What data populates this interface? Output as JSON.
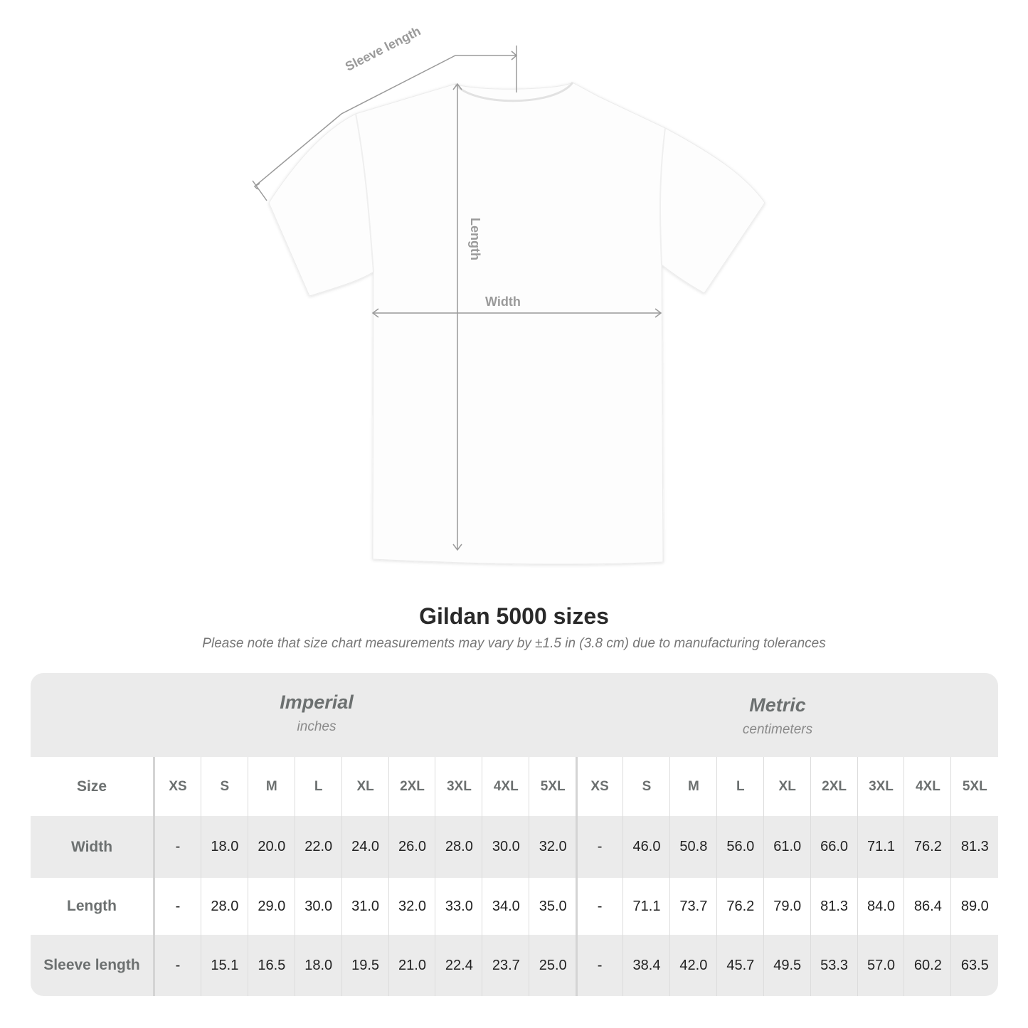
{
  "diagram": {
    "labels": {
      "sleeve": "Sleeve length",
      "length": "Length",
      "width": "Width"
    },
    "line_color": "#9a9a9a"
  },
  "title": "Gildan 5000 sizes",
  "note": "Please note that size chart measurements may vary by ±1.5 in (3.8 cm) due to manufacturing tolerances",
  "table": {
    "imperial": {
      "system": "Imperial",
      "unit": "inches"
    },
    "metric": {
      "system": "Metric",
      "unit": "centimeters"
    },
    "size_label": "Size",
    "sizes": [
      "XS",
      "S",
      "M",
      "L",
      "XL",
      "2XL",
      "3XL",
      "4XL",
      "5XL"
    ],
    "rows": [
      {
        "label": "Width",
        "imperial": [
          "-",
          "18.0",
          "20.0",
          "22.0",
          "24.0",
          "26.0",
          "28.0",
          "30.0",
          "32.0"
        ],
        "metric": [
          "-",
          "46.0",
          "50.8",
          "56.0",
          "61.0",
          "66.0",
          "71.1",
          "76.2",
          "81.3"
        ]
      },
      {
        "label": "Length",
        "imperial": [
          "-",
          "28.0",
          "29.0",
          "30.0",
          "31.0",
          "32.0",
          "33.0",
          "34.0",
          "35.0"
        ],
        "metric": [
          "-",
          "71.1",
          "73.7",
          "76.2",
          "79.0",
          "81.3",
          "84.0",
          "86.4",
          "89.0"
        ]
      },
      {
        "label": "Sleeve length",
        "imperial": [
          "-",
          "15.1",
          "16.5",
          "18.0",
          "19.5",
          "21.0",
          "22.4",
          "23.7",
          "25.0"
        ],
        "metric": [
          "-",
          "38.4",
          "42.0",
          "45.7",
          "49.5",
          "53.3",
          "57.0",
          "60.2",
          "63.5"
        ]
      }
    ],
    "colors": {
      "band": "#ebebeb",
      "header_text": "#6c7070"
    }
  }
}
